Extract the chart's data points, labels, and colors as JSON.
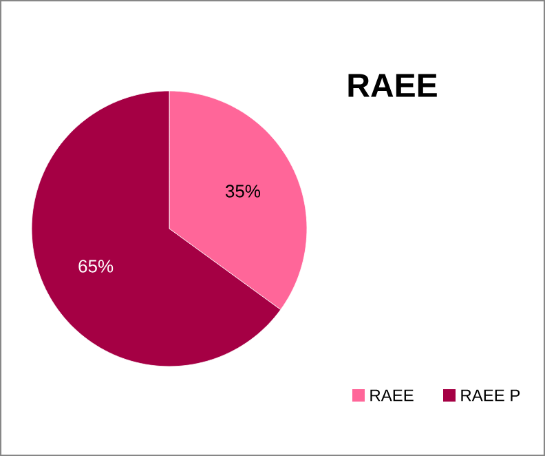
{
  "chart_data": {
    "type": "pie",
    "title": "RAEE",
    "categories": [
      "RAEE",
      "RAEE P"
    ],
    "values": [
      35,
      65
    ],
    "colors": [
      "#ff6699",
      "#a50044"
    ],
    "value_labels": [
      "35%",
      "65%"
    ],
    "legend": "bottom right"
  }
}
